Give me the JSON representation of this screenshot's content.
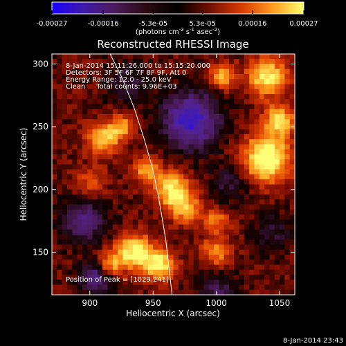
{
  "colorbar": {
    "tick_labels": [
      "-0.00027",
      "-0.00016",
      "-5.3e-05",
      "5.3e-05",
      "0.00016",
      "0.00027"
    ],
    "tick_values": [
      -0.00027,
      -0.00016,
      -5.3e-05,
      5.3e-05,
      0.00016,
      0.00027
    ],
    "range": [
      -0.00027,
      0.00027
    ],
    "units_prefix": "(photons cm",
    "units_exp1": "-2",
    "units_mid": " s",
    "units_exp2": "-1",
    "units_mid2": " asec",
    "units_exp3": "-2",
    "units_suffix": ")",
    "gradient_colors": [
      "#1a00ff",
      "#3f1aa8",
      "#4a1c5a",
      "#2a0a10",
      "#000000",
      "#701000",
      "#d63a00",
      "#ff9a20",
      "#ffff70"
    ]
  },
  "plot": {
    "title": "Reconstructed RHESSI Image",
    "info_lines": [
      "8-Jan-2014 15:11:26.000 to 15:15:20.000",
      "Detectors: 3F 5F 6F 7F 8F 9F, Att 0",
      "Energy Range: 12.0 - 25.0 keV",
      "Clean     Total counts: 9.96E+03"
    ],
    "peak_text": "Position of Peak = [1029,241]",
    "timestamp": "8-Jan-2014 23:43"
  },
  "chart_data": {
    "type": "heatmap",
    "title": "Reconstructed RHESSI Image",
    "xlabel": "Heliocentric X (arcsec)",
    "ylabel": "Heliocentric Y (arcsec)",
    "xlim": [
      870,
      1062
    ],
    "ylim": [
      116,
      308
    ],
    "x_ticks": [
      900,
      950,
      1000,
      1050
    ],
    "y_ticks": [
      150,
      200,
      250,
      300
    ],
    "value_range": [
      -0.00027,
      0.00027
    ],
    "peak_position": [
      1029,
      241
    ],
    "limb_curve": [
      [
        916,
        308
      ],
      [
        925,
        290
      ],
      [
        935,
        265
      ],
      [
        943,
        240
      ],
      [
        950,
        215
      ],
      [
        955,
        190
      ],
      [
        960,
        160
      ],
      [
        965,
        116
      ]
    ]
  }
}
